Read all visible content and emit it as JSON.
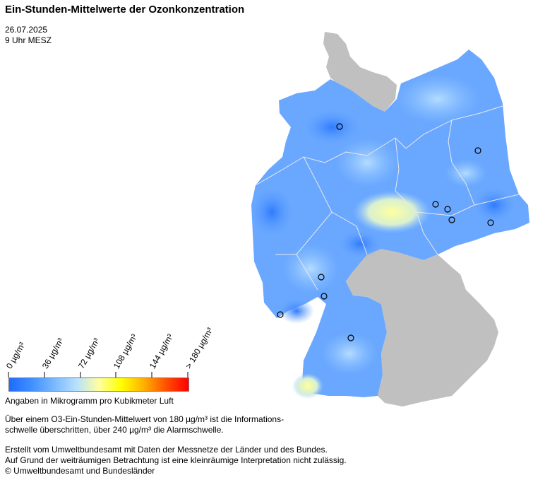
{
  "title": "Ein-Stunden-Mittelwerte der Ozonkonzentration",
  "date": "26.07.2025",
  "time": "9 Uhr MESZ",
  "legend": {
    "ticks": [
      "0 µg/m³",
      "36 µg/m³",
      "72 µg/m³",
      "108 µg/m³",
      "144 µg/m³",
      "> 180 µg/m³"
    ],
    "colors": [
      "#1e6bff",
      "#3f90ff",
      "#7ab8ff",
      "#b7e0ff",
      "#ffffa0",
      "#ffff00",
      "#ffb000",
      "#ff5000",
      "#ff0000"
    ],
    "unit_text": "Angaben in Mikrogramm pro Kubikmeter Luft"
  },
  "notes": {
    "threshold_line1": "Über einem O3-Ein-Stunden-Mittelwert von 180 µg/m³ ist die Informations-",
    "threshold_line2": "schwelle überschritten, über 240 µg/m³ die Alarmschwelle.",
    "credits_line1": "Erstellt vom Umweltbundesamt mit Daten der Messnetze der Länder und des Bundes.",
    "credits_line2": "Auf Grund der weiträumigen Betrachtung ist eine kleinräumige Interpretation nicht zulässig.",
    "copyright": "© Umweltbundesamt und Bundesländer"
  },
  "map_colors": {
    "no_data_grey": "#c0c0c0",
    "ozone_low": "#4a90ff",
    "ozone_mid": "#8cc4ff",
    "ozone_high": "#ffffa0",
    "border": "#e8e8e8"
  }
}
